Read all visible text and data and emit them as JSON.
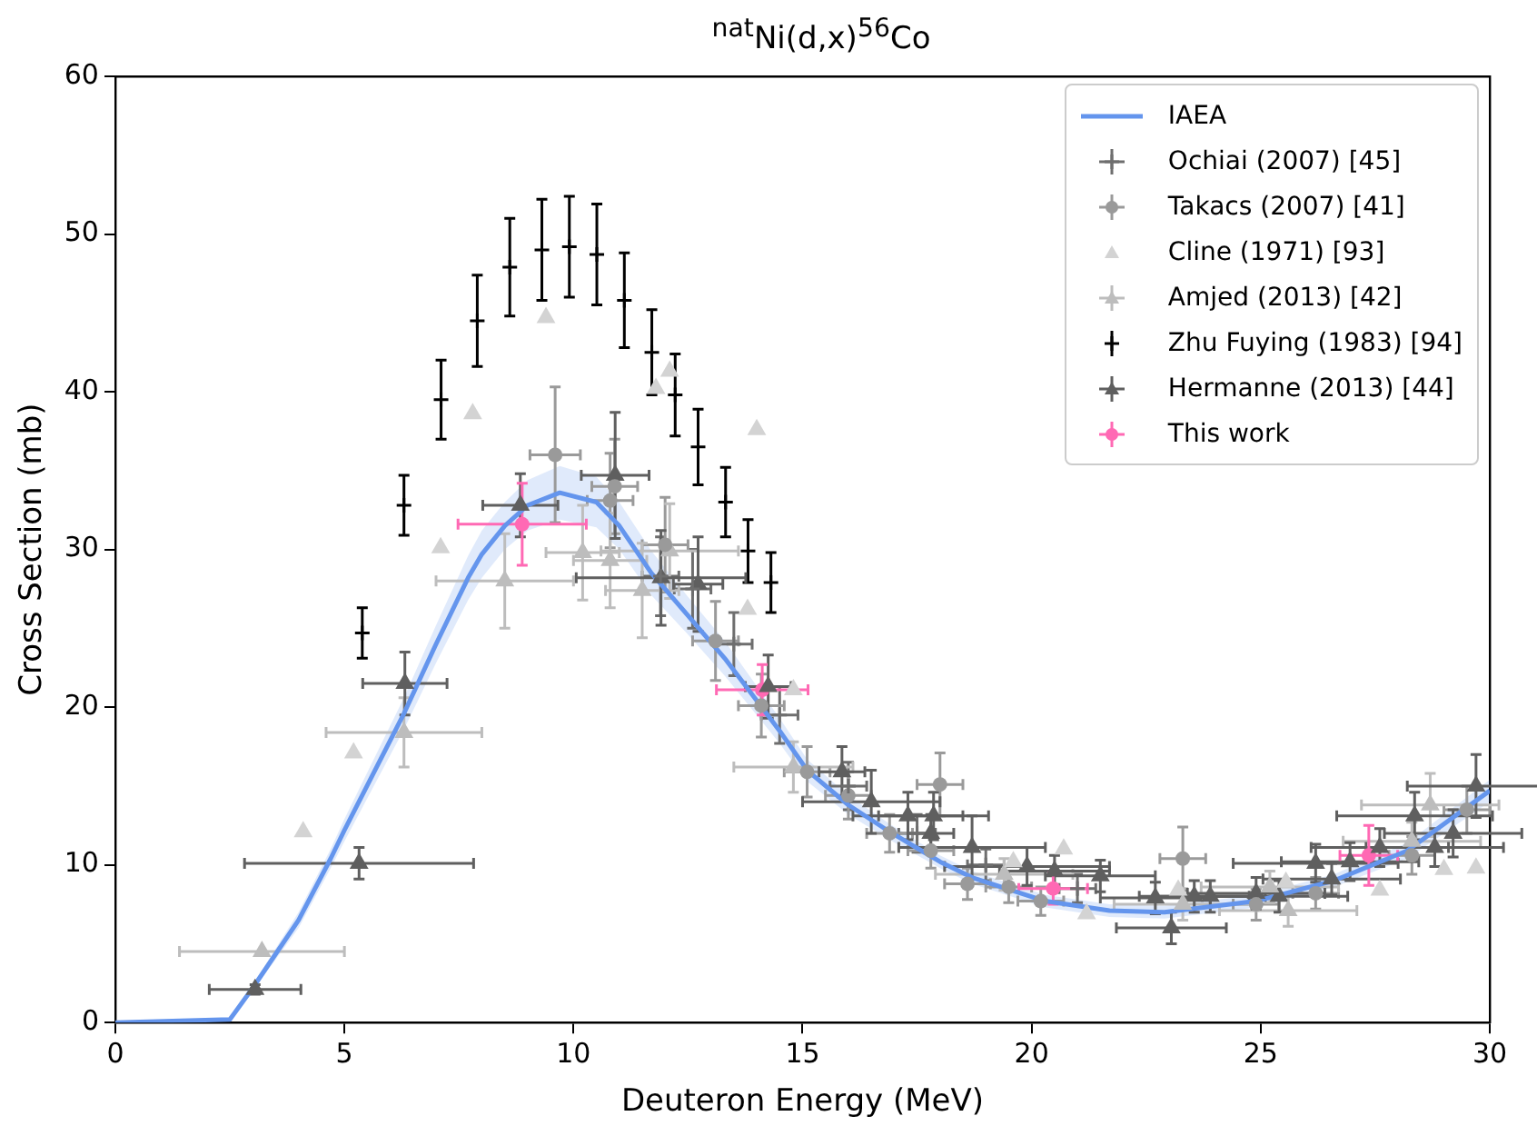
{
  "chart_data": {
    "type": "scatter",
    "title": "$^{nat}$Ni(d,x)$^{56}$Co",
    "xlabel": "Deuteron Energy (MeV)",
    "ylabel": "Cross Section (mb)",
    "xlim": [
      0,
      30
    ],
    "xticks": [
      0,
      5,
      10,
      15,
      20,
      25,
      30
    ],
    "ylim": [
      0,
      60
    ],
    "yticks": [
      0,
      10,
      20,
      30,
      40,
      50,
      60
    ],
    "grid": false,
    "legend": "top right",
    "series": [
      {
        "name": "IAEA",
        "type": "line",
        "color": "#6495ed",
        "marker": "none",
        "line_style": "solid",
        "x": [
          0,
          2.5,
          3,
          4,
          4.7,
          5,
          6.3,
          7,
          7.7,
          8,
          8.5,
          9,
          9.7,
          10.5,
          11,
          11.7,
          12.5,
          13.3,
          14.5,
          15.1,
          16,
          16.9,
          18,
          18.7,
          20.3,
          21.7,
          22.9,
          24.9,
          26.6,
          28.2,
          30
        ],
        "values": [
          0,
          0.2,
          2.2,
          6.5,
          10.4,
          12.2,
          19.6,
          24,
          28.2,
          29.7,
          31.5,
          32.8,
          33.6,
          33,
          31.5,
          28.5,
          25.8,
          23.1,
          18.5,
          16,
          13.8,
          12.1,
          10.2,
          9.2,
          7.7,
          7.1,
          7,
          7.7,
          9,
          10.9,
          14.7
        ],
        "lower": [
          0,
          0.2,
          2,
          6,
          9.8,
          11.5,
          18.6,
          22.8,
          26.8,
          28.2,
          30,
          31.2,
          31.9,
          31.4,
          30,
          27.1,
          24.6,
          22,
          17.7,
          15.3,
          13.2,
          11.6,
          9.8,
          8.8,
          7.3,
          6.7,
          6.6,
          7.3,
          8.6,
          10.4,
          14
        ],
        "upper": [
          0,
          0.2,
          2.4,
          7,
          11,
          12.9,
          20.6,
          25.2,
          29.6,
          31.2,
          33,
          34.4,
          35.3,
          34.6,
          33,
          29.9,
          27,
          24.2,
          19.3,
          16.7,
          14.4,
          12.6,
          10.6,
          9.6,
          8.1,
          7.5,
          7.4,
          8.1,
          9.4,
          11.4,
          15.4
        ]
      },
      {
        "name": "Ochiai (2007) [45]",
        "color": "#6e6e6e",
        "marker": "cross",
        "x": [
          11.9,
          12.6,
          13.5,
          14.5,
          16,
          17.5,
          19,
          21
        ],
        "values": [
          28.3,
          27.5,
          24,
          19.5,
          15,
          12,
          10,
          8.5
        ],
        "errors": [
          2.5,
          2.5,
          2,
          1.8,
          1.5,
          1.2,
          1,
          0.9
        ],
        "xerrors": [
          0.4,
          0.4,
          0.4,
          0.4,
          0.4,
          0.4,
          0.4,
          0.4
        ]
      },
      {
        "name": "Takacs (2007) [41]",
        "color": "#9a9a9a",
        "marker": "circle",
        "x": [
          9.6,
          10.9,
          10.8,
          12,
          13.1,
          14.1,
          15.1,
          16,
          16.9,
          18,
          17.8,
          18.6,
          19.5,
          20.2,
          23.3,
          24.9,
          26.2,
          28.3,
          29.5
        ],
        "values": [
          36,
          34,
          33.1,
          30.3,
          24.2,
          20.1,
          15.9,
          14.4,
          12,
          15.1,
          10.9,
          8.8,
          8.6,
          7.7,
          10.4,
          7.5,
          8.2,
          10.6,
          13.5
        ],
        "errors": [
          4.3,
          3,
          3,
          3,
          2.5,
          2,
          1.6,
          1.5,
          1.2,
          2,
          1.1,
          1,
          1,
          0.9,
          2,
          1,
          1,
          1.2,
          1.5
        ],
        "xerrors": [
          0.55,
          0.5,
          0.5,
          0.5,
          0.5,
          0.5,
          0.5,
          0.5,
          0.5,
          0.5,
          0.5,
          0.5,
          0.5,
          0.5,
          0.5,
          0.5,
          0.5,
          0.5,
          0.5
        ]
      },
      {
        "name": "Cline (1971) [93]",
        "color": "#d3d3d3",
        "marker": "triangle",
        "x": [
          4.1,
          5.2,
          7.1,
          7.8,
          9.4,
          11.8,
          12.1,
          13.8,
          14,
          14.8,
          19.6,
          20.7,
          21.2,
          23.2,
          25.55,
          27.6,
          29,
          29.7
        ],
        "values": [
          12.1,
          17.1,
          30.1,
          38.6,
          44.7,
          40.2,
          41.3,
          26.2,
          37.6,
          21.1,
          10.2,
          11,
          6.9,
          8.4,
          8.9,
          8.4,
          9.7,
          9.8
        ]
      },
      {
        "name": "Amjed (2013) [42]",
        "color": "#bdbdbd",
        "marker": "triangle",
        "x": [
          3.2,
          6.3,
          8.5,
          10.2,
          10.8,
          11.5,
          12.1,
          14.8,
          19.4,
          23.3,
          25.2,
          25.6,
          28.3,
          28.7
        ],
        "values": [
          4.5,
          18.4,
          28,
          29.8,
          29.3,
          27.4,
          29.9,
          16.2,
          9.4,
          7.5,
          8.6,
          7.1,
          11.5,
          13.8
        ],
        "errors": [
          null,
          2.2,
          3,
          3,
          3,
          3,
          3,
          1.6,
          1,
          1,
          1,
          1,
          1.2,
          2
        ],
        "xerrors": [
          1.8,
          1.7,
          1.5,
          0.8,
          0.8,
          0.8,
          1.5,
          1.3,
          1.5,
          1.5,
          1.5,
          1.5,
          1.5,
          1.5
        ]
      },
      {
        "name": "Zhu Fuying (1983) [94]",
        "color": "#000000",
        "marker": "cross",
        "x": [
          5.39,
          6.3,
          7.11,
          7.9,
          8.61,
          9.31,
          9.91,
          10.51,
          11.11,
          11.71,
          12.22,
          12.72,
          13.32,
          13.81,
          14.31
        ],
        "values": [
          24.7,
          32.8,
          39.5,
          44.5,
          47.9,
          49,
          49.2,
          48.7,
          45.8,
          42.5,
          39.8,
          36.5,
          33,
          29.9,
          27.9
        ],
        "errors": [
          1.6,
          1.9,
          2.5,
          2.9,
          3.1,
          3.2,
          3.2,
          3.2,
          3,
          2.7,
          2.6,
          2.4,
          2.2,
          2,
          1.9
        ]
      },
      {
        "name": "Hermanne (2013) [44]",
        "color": "#5f5f5f",
        "marker": "triangle",
        "x": [
          3.05,
          5.32,
          6.32,
          8.84,
          10.91,
          11.91,
          12.72,
          14.25,
          15.86,
          16.5,
          17.3,
          17.86,
          17.8,
          18.7,
          19.9,
          20.5,
          21.5,
          22.7,
          23.05,
          23.55,
          23.9,
          24.9,
          25.4,
          26.2,
          26.55,
          26.95,
          27.6,
          28.36,
          28.8,
          29.2,
          29.7
        ],
        "values": [
          2.1,
          10.1,
          21.5,
          32.8,
          34.7,
          28.2,
          27.8,
          21.3,
          15.9,
          14,
          13.1,
          13.1,
          12,
          11.1,
          9.9,
          9.6,
          9.3,
          7.9,
          6,
          8,
          8,
          8.2,
          8,
          10.1,
          9.1,
          10.2,
          11.1,
          13.1,
          11.1,
          12,
          15
        ],
        "errors": [
          0.3,
          1,
          2,
          2,
          4,
          3,
          3,
          2,
          1.6,
          2,
          1.5,
          1.5,
          1.2,
          2,
          1.2,
          1,
          1,
          1,
          1,
          1,
          1,
          1,
          1,
          1.2,
          1,
          1.2,
          1.2,
          1.5,
          1.2,
          1.5,
          2
        ],
        "xerrors": [
          1,
          2.5,
          0.92,
          0.82,
          0.74,
          1.85,
          0.54,
          0.5,
          0.5,
          1.5,
          1.2,
          1.2,
          0.5,
          1.6,
          1.8,
          1.2,
          1.2,
          1.2,
          1.2,
          1.2,
          1.2,
          1.5,
          1.5,
          1.8,
          1.5,
          1.5,
          1.5,
          1.7,
          1.5,
          1.5,
          1.5
        ]
      },
      {
        "name": "This work",
        "color": "#ff69b4",
        "marker": "circle",
        "x": [
          8.88,
          14.12,
          20.47,
          27.36
        ],
        "values": [
          31.6,
          21.1,
          8.5,
          10.6
        ],
        "errors": [
          2.6,
          1.6,
          1,
          1.9
        ],
        "xerrors": [
          1.4,
          1,
          0.75,
          0.63
        ]
      }
    ]
  }
}
